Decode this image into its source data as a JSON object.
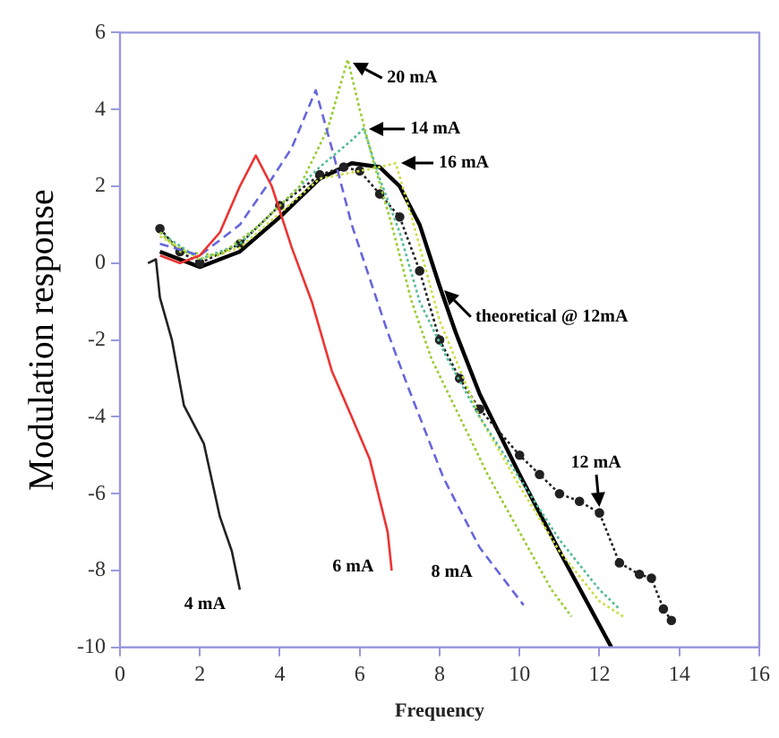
{
  "chart_data": {
    "type": "line",
    "xlabel": "Frequency",
    "ylabel": "Modulation response",
    "xlim": [
      0,
      16
    ],
    "xticks": [
      0,
      2,
      4,
      6,
      8,
      10,
      12,
      14,
      16
    ],
    "ylim": [
      -10,
      6
    ],
    "yticks": [
      -10,
      -8,
      -6,
      -4,
      -2,
      0,
      2,
      4,
      6
    ],
    "grid": false,
    "legend": false,
    "marker": "none",
    "line_style": "solid",
    "series": [
      {
        "color": "#222222",
        "x": [
          0.7,
          0.9,
          1.0,
          1.3,
          1.6,
          2.1,
          2.5,
          2.8,
          3.0
        ],
        "values": [
          0,
          0.1,
          -0.9,
          -2,
          -3.7,
          -4.7,
          -6.6,
          -7.5,
          -8.5
        ]
      },
      {
        "color": "#ee3333",
        "x": [
          1,
          1.5,
          2,
          2.5,
          3,
          3.4,
          3.8,
          4.3,
          4.8,
          5.3,
          5.8,
          6.25,
          6.7,
          6.8
        ],
        "values": [
          0.2,
          0,
          0.2,
          0.8,
          2,
          2.8,
          2,
          0.4,
          -1,
          -2.8,
          -4,
          -5.1,
          -7,
          -8
        ]
      },
      {
        "color": "#6666dd",
        "line_style": "dashed",
        "x": [
          1,
          2,
          3,
          3.8,
          4.3,
          4.9,
          5.3,
          5.8,
          6.7,
          7.2,
          8.1,
          9,
          10.1
        ],
        "values": [
          0.5,
          0.2,
          1,
          2.2,
          3,
          4.5,
          3,
          1,
          -1.8,
          -3.2,
          -5.6,
          -7.4,
          -8.9
        ]
      },
      {
        "color": "#99cc33",
        "line_style": "dotted",
        "x": [
          1,
          1.5,
          2.5,
          3.5,
          4.5,
          5.2,
          5.7,
          6,
          6.3,
          6.8,
          7.3,
          7.8,
          8.5,
          9.2,
          10,
          10.8,
          11.3
        ],
        "values": [
          0.8,
          0.3,
          0.2,
          1,
          2,
          3.5,
          5.3,
          4,
          2.8,
          1,
          -1,
          -2.5,
          -4,
          -5.5,
          -7,
          -8.5,
          -9.2
        ]
      },
      {
        "color": "#55bb99",
        "line_style": "dotted",
        "x": [
          1,
          2,
          3,
          4,
          5,
          5.8,
          6.1,
          6.5,
          7,
          7.5,
          8.2,
          9,
          10,
          11,
          12,
          12.5
        ],
        "values": [
          0.8,
          0.1,
          0.5,
          1.5,
          2.5,
          3.2,
          3.5,
          2.2,
          0.8,
          -1,
          -2.5,
          -4,
          -5.6,
          -7.2,
          -8.5,
          -9
        ]
      },
      {
        "color": "#ccdd44",
        "line_style": "dotted",
        "x": [
          1,
          2,
          3,
          4,
          5,
          6,
          6.5,
          6.9,
          7.3,
          8,
          9,
          10,
          11,
          12,
          12.6
        ],
        "values": [
          0.7,
          0.1,
          0.4,
          1.3,
          2.2,
          2.4,
          2.5,
          2.6,
          1.2,
          -1.5,
          -4,
          -5.8,
          -7.5,
          -8.8,
          -9.2
        ]
      },
      {
        "color": "#222222",
        "line_style": "dotted",
        "marker": "circle",
        "x": [
          1,
          1.5,
          2,
          3,
          4,
          5,
          5.6,
          6,
          6.5,
          7,
          7.5,
          8,
          8.5,
          9,
          10,
          10.5,
          11,
          11.5,
          12,
          12.5,
          13,
          13.3,
          13.6,
          13.8
        ],
        "values": [
          0.9,
          0.3,
          0,
          0.5,
          1.5,
          2.3,
          2.5,
          2.4,
          1.8,
          1.2,
          -0.2,
          -2,
          -3,
          -3.8,
          -5,
          -5.5,
          -6,
          -6.2,
          -6.5,
          -7.8,
          -8.1,
          -8.2,
          -9,
          -9.3
        ]
      },
      {
        "color": "#000000",
        "x": [
          1,
          2,
          3,
          4,
          5,
          5.8,
          6.5,
          7,
          7.5,
          8,
          8.4,
          9,
          10,
          11,
          12.3
        ],
        "values": [
          0.3,
          -0.1,
          0.3,
          1.2,
          2.2,
          2.6,
          2.5,
          2,
          1,
          -0.6,
          -1.8,
          -3.4,
          -5.5,
          -7.5,
          -10
        ]
      }
    ],
    "annotations": [
      {
        "text": "20 mA",
        "x": 5.7,
        "y": 5.3
      },
      {
        "text": "14 mA",
        "x": 6.1,
        "y": 3.5
      },
      {
        "text": "16 mA",
        "x": 6.9,
        "y": 2.6
      },
      {
        "text": "theoretical @ 12mA",
        "x": 8,
        "y": -0.6
      },
      {
        "text": "12 mA",
        "x": 12,
        "y": -6.5
      },
      {
        "text": "4 mA",
        "x": 3.0,
        "y": -8.5
      },
      {
        "text": "6 mA",
        "x": 6.8,
        "y": -8
      },
      {
        "text": "8 mA",
        "x": 9,
        "y": -7.4
      }
    ]
  }
}
